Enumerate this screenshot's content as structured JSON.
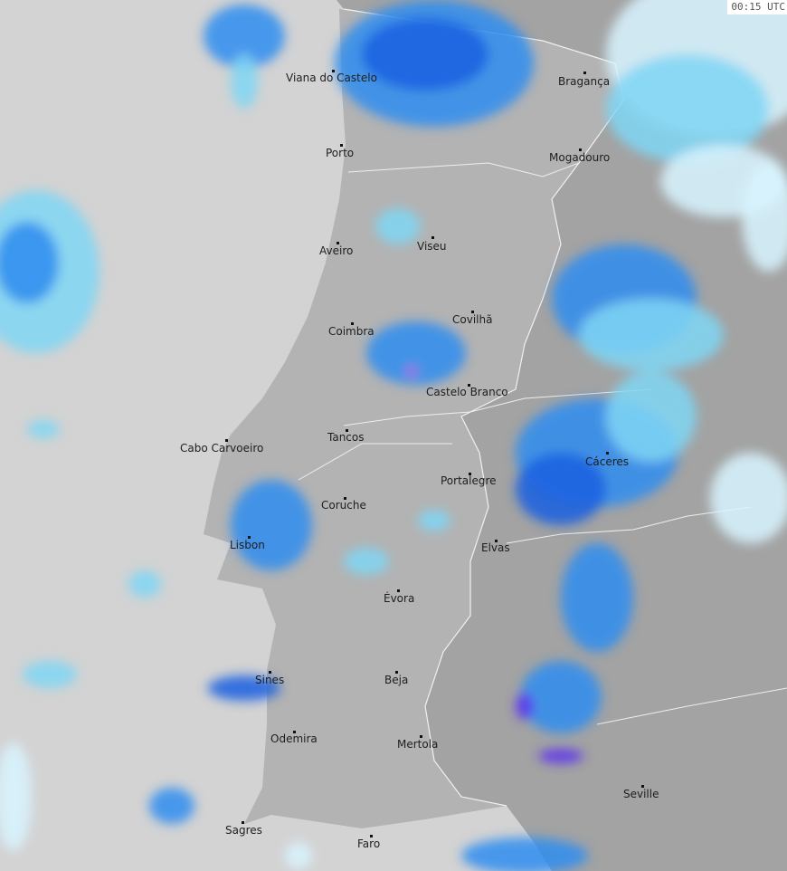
{
  "timestamp": "00:15 UTC",
  "colors": {
    "sea": "#d3d3d3",
    "portugal": "#b3b3b3",
    "spain": "#a3a3a3",
    "border": "#f2f2f2",
    "radar_light": "#d8f4ff",
    "radar_cyan": "#7fd6f5",
    "radar_blue": "#2f8df0",
    "radar_deep": "#1b5fe0",
    "radar_violet": "#5a2ff0",
    "radar_magenta": "#e020e0"
  },
  "cities": [
    "Viana do Castelo",
    "Bragança",
    "Porto",
    "Mogadouro",
    "Aveiro",
    "Viseu",
    "Covilhã",
    "Coimbra",
    "Castelo Branco",
    "Cabo Carvoeiro",
    "Tancos",
    "Cáceres",
    "Portalegre",
    "Coruche",
    "Lisbon",
    "Elvas",
    "Évora",
    "Sines",
    "Beja",
    "Odemira",
    "Mertola",
    "Seville",
    "Sagres",
    "Faro"
  ]
}
